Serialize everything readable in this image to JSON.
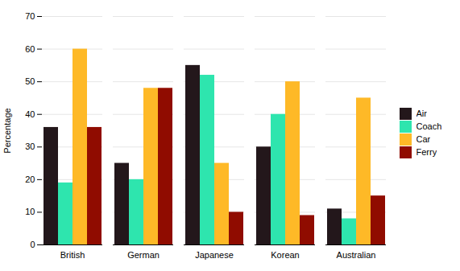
{
  "chart_data": {
    "type": "bar",
    "ylabel": "Percentage",
    "categories": [
      "British",
      "German",
      "Japanese",
      "Korean",
      "Australian"
    ],
    "series": [
      {
        "name": "Air",
        "values": [
          36,
          25,
          55,
          30,
          11
        ]
      },
      {
        "name": "Coach",
        "values": [
          19,
          20,
          52,
          40,
          8
        ]
      },
      {
        "name": "Car",
        "values": [
          60,
          48,
          25,
          50,
          45
        ]
      },
      {
        "name": "Ferry",
        "values": [
          36,
          48,
          10,
          9,
          15
        ]
      }
    ],
    "ylim": [
      0,
      70
    ],
    "yticks": [
      0,
      10,
      20,
      30,
      40,
      50,
      60,
      70
    ],
    "grid": true,
    "legend": "right"
  }
}
